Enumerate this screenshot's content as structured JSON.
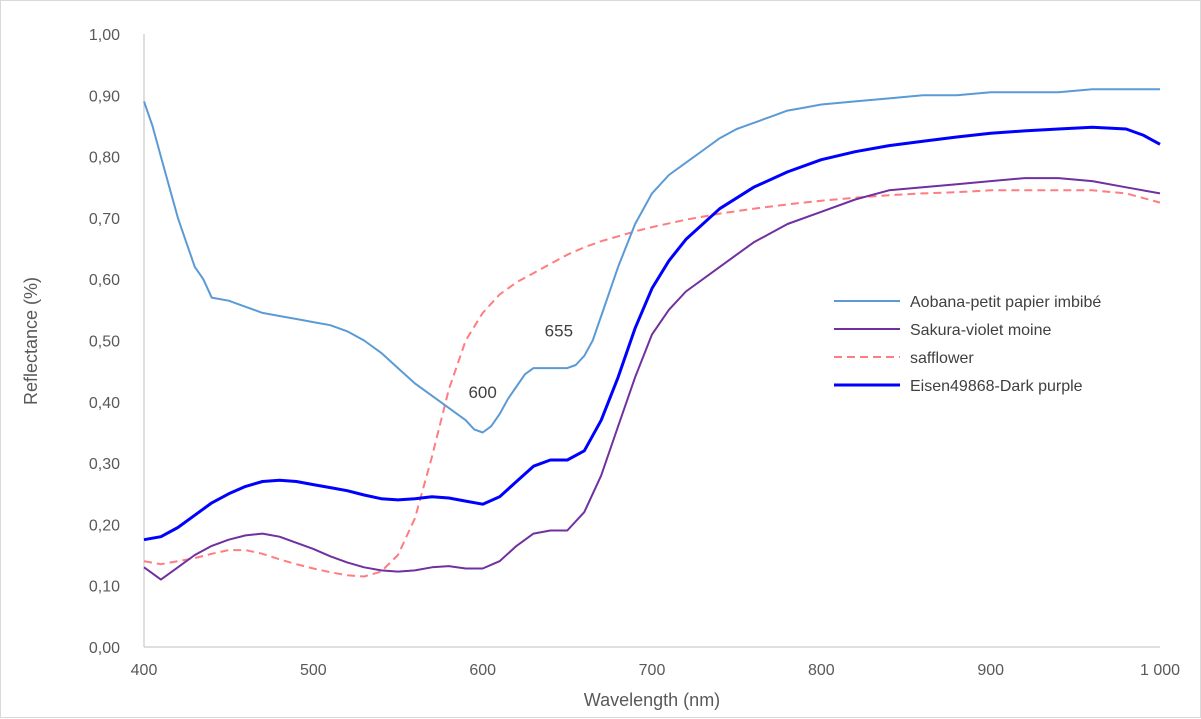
{
  "chart_data": {
    "type": "line",
    "title": "",
    "xlabel": "Wavelength (nm)",
    "ylabel": "Reflectance (%)",
    "xlim": [
      400,
      1000
    ],
    "ylim": [
      0,
      1
    ],
    "xticks": [
      400,
      500,
      600,
      700,
      800,
      900,
      1000
    ],
    "xtick_labels": [
      "400",
      "500",
      "600",
      "700",
      "800",
      "900",
      "1 000"
    ],
    "yticks": [
      0,
      0.1,
      0.2,
      0.3,
      0.4,
      0.5,
      0.6,
      0.7,
      0.8,
      0.9,
      1.0
    ],
    "ytick_labels": [
      "0,00",
      "0,10",
      "0,20",
      "0,30",
      "0,40",
      "0,50",
      "0,60",
      "0,70",
      "0,80",
      "0,90",
      "1,00"
    ],
    "grid": false,
    "legend_position": "right",
    "series": [
      {
        "name": "Aobana-petit papier imbibé",
        "color": "#5b9bd5",
        "style": "solid",
        "x": [
          400,
          405,
          410,
          415,
          420,
          425,
          430,
          435,
          440,
          450,
          460,
          470,
          480,
          490,
          500,
          510,
          520,
          530,
          540,
          550,
          560,
          570,
          580,
          590,
          595,
          600,
          605,
          610,
          615,
          620,
          625,
          630,
          640,
          650,
          655,
          660,
          665,
          670,
          680,
          690,
          700,
          710,
          720,
          730,
          740,
          750,
          760,
          770,
          780,
          790,
          800,
          820,
          840,
          860,
          880,
          900,
          920,
          940,
          960,
          980,
          1000
        ],
        "y": [
          0.89,
          0.85,
          0.8,
          0.75,
          0.7,
          0.66,
          0.62,
          0.6,
          0.57,
          0.565,
          0.555,
          0.545,
          0.54,
          0.535,
          0.53,
          0.525,
          0.515,
          0.5,
          0.48,
          0.455,
          0.43,
          0.41,
          0.39,
          0.37,
          0.355,
          0.35,
          0.36,
          0.38,
          0.405,
          0.425,
          0.445,
          0.455,
          0.455,
          0.455,
          0.46,
          0.475,
          0.5,
          0.54,
          0.62,
          0.69,
          0.74,
          0.77,
          0.79,
          0.81,
          0.83,
          0.845,
          0.855,
          0.865,
          0.875,
          0.88,
          0.885,
          0.89,
          0.895,
          0.9,
          0.9,
          0.905,
          0.905,
          0.905,
          0.91,
          0.91,
          0.91
        ]
      },
      {
        "name": "Sakura-violet moine",
        "color": "#7030a0",
        "style": "solid",
        "x": [
          400,
          405,
          410,
          420,
          430,
          440,
          450,
          460,
          470,
          480,
          490,
          500,
          510,
          520,
          530,
          540,
          550,
          560,
          570,
          580,
          590,
          600,
          610,
          620,
          630,
          640,
          650,
          660,
          670,
          680,
          690,
          700,
          710,
          720,
          740,
          760,
          780,
          800,
          820,
          840,
          860,
          880,
          900,
          920,
          940,
          960,
          980,
          1000
        ],
        "y": [
          0.13,
          0.12,
          0.11,
          0.13,
          0.15,
          0.165,
          0.175,
          0.182,
          0.185,
          0.18,
          0.17,
          0.16,
          0.148,
          0.138,
          0.13,
          0.125,
          0.123,
          0.125,
          0.13,
          0.132,
          0.128,
          0.128,
          0.14,
          0.165,
          0.185,
          0.19,
          0.19,
          0.22,
          0.28,
          0.36,
          0.44,
          0.51,
          0.55,
          0.58,
          0.62,
          0.66,
          0.69,
          0.71,
          0.73,
          0.745,
          0.75,
          0.755,
          0.76,
          0.765,
          0.765,
          0.76,
          0.75,
          0.74
        ]
      },
      {
        "name": "safflower",
        "color": "#ff7c80",
        "style": "dashed",
        "x": [
          400,
          410,
          420,
          430,
          440,
          450,
          460,
          470,
          480,
          490,
          500,
          510,
          520,
          530,
          540,
          550,
          560,
          570,
          580,
          590,
          600,
          610,
          620,
          630,
          640,
          650,
          660,
          670,
          680,
          690,
          700,
          720,
          740,
          760,
          780,
          800,
          820,
          840,
          860,
          880,
          900,
          920,
          940,
          960,
          980,
          1000
        ],
        "y": [
          0.14,
          0.135,
          0.14,
          0.145,
          0.152,
          0.158,
          0.158,
          0.152,
          0.143,
          0.135,
          0.128,
          0.122,
          0.117,
          0.115,
          0.123,
          0.15,
          0.21,
          0.31,
          0.42,
          0.5,
          0.545,
          0.575,
          0.595,
          0.61,
          0.625,
          0.64,
          0.652,
          0.662,
          0.67,
          0.678,
          0.685,
          0.697,
          0.707,
          0.715,
          0.722,
          0.728,
          0.733,
          0.737,
          0.74,
          0.742,
          0.745,
          0.745,
          0.745,
          0.745,
          0.74,
          0.725
        ]
      },
      {
        "name": "Eisen49868-Dark purple",
        "color": "#0000ff",
        "style": "solid",
        "x": [
          400,
          410,
          420,
          430,
          440,
          450,
          460,
          470,
          480,
          490,
          500,
          510,
          520,
          530,
          540,
          550,
          560,
          570,
          580,
          590,
          600,
          610,
          620,
          630,
          640,
          650,
          660,
          670,
          680,
          690,
          700,
          710,
          720,
          740,
          760,
          780,
          800,
          820,
          840,
          860,
          880,
          900,
          920,
          940,
          960,
          980,
          990,
          1000
        ],
        "y": [
          0.175,
          0.18,
          0.195,
          0.215,
          0.235,
          0.25,
          0.262,
          0.27,
          0.272,
          0.27,
          0.265,
          0.26,
          0.255,
          0.248,
          0.242,
          0.24,
          0.242,
          0.245,
          0.243,
          0.238,
          0.233,
          0.245,
          0.27,
          0.295,
          0.305,
          0.305,
          0.32,
          0.37,
          0.44,
          0.52,
          0.585,
          0.63,
          0.665,
          0.715,
          0.75,
          0.775,
          0.795,
          0.808,
          0.818,
          0.825,
          0.832,
          0.838,
          0.842,
          0.845,
          0.848,
          0.845,
          0.835,
          0.82
        ]
      }
    ],
    "annotations": [
      {
        "text": "600",
        "x": 600,
        "y": 0.4
      },
      {
        "text": "655",
        "x": 645,
        "y": 0.5
      }
    ]
  }
}
